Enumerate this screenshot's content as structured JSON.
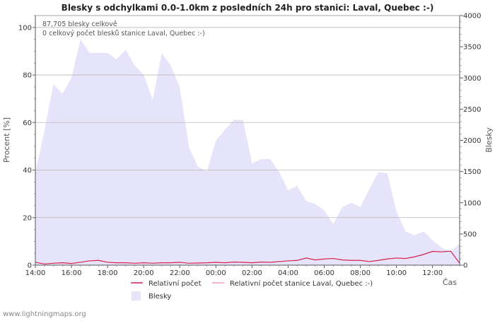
{
  "chart_data": {
    "type": "area",
    "title": "Blesky s odchylkami 0.0-1.0km z posledních 24h pro stanici: Laval, Quebec :-)",
    "ylabel_left": "Procent   [%]",
    "ylabel_right": "Blesky",
    "xlabel": "Čas",
    "ylim_left": [
      0,
      105
    ],
    "ylim_right": [
      0,
      4000
    ],
    "yticks_left": [
      "0",
      "20",
      "40",
      "60",
      "80",
      "100"
    ],
    "yticks_right": [
      "0",
      "500",
      "1000",
      "1500",
      "2000",
      "2500",
      "3000",
      "3500",
      "4000"
    ],
    "xticks": [
      "14:00",
      "16:00",
      "18:00",
      "20:00",
      "22:00",
      "00:00",
      "02:00",
      "04:00",
      "06:00",
      "08:00",
      "10:00",
      "12:00"
    ],
    "annotations": [
      "87,705 blesky celkově",
      "0 celkový počet blesků stanice Laval, Quebec :-)"
    ],
    "series": [
      {
        "name": "Blesky",
        "color": "#e6e4fa",
        "axis": "right",
        "hours": [
          0,
          0.5,
          1,
          1.5,
          2,
          2.5,
          3,
          3.5,
          4,
          4.5,
          5,
          5.5,
          6,
          6.5,
          7,
          7.5,
          8,
          8.5,
          9,
          9.5,
          10,
          10.5,
          11,
          11.5,
          12,
          12.5,
          13,
          13.5,
          14,
          14.5,
          15,
          15.5,
          16,
          16.5,
          17,
          17.5,
          18,
          18.5,
          19,
          19.5,
          20,
          20.5,
          21,
          21.5,
          22,
          22.5,
          23,
          23.5
        ],
        "values": [
          1480,
          2150,
          2900,
          2750,
          3000,
          3620,
          3400,
          3400,
          3400,
          3300,
          3450,
          3200,
          3050,
          2650,
          3400,
          3200,
          2850,
          1900,
          1580,
          1500,
          2000,
          2170,
          2330,
          2330,
          1630,
          1700,
          1700,
          1500,
          1200,
          1270,
          1030,
          980,
          880,
          660,
          930,
          1000,
          930,
          1220,
          1490,
          1470,
          860,
          540,
          480,
          540,
          400,
          280,
          210,
          350
        ]
      },
      {
        "name": "Relativní počet",
        "color": "#d6224a",
        "axis": "left",
        "hours": [
          0,
          0.5,
          1,
          1.5,
          2,
          2.5,
          3,
          3.5,
          4,
          4.5,
          5,
          5.5,
          6,
          6.5,
          7,
          7.5,
          8,
          8.5,
          9,
          9.5,
          10,
          10.5,
          11,
          11.5,
          12,
          12.5,
          13,
          13.5,
          14,
          14.5,
          15,
          15.5,
          16,
          16.5,
          17,
          17.5,
          18,
          18.5,
          19,
          19.5,
          20,
          20.5,
          21,
          21.5,
          22,
          22.5,
          23,
          23.5
        ],
        "values": [
          1.2,
          0.5,
          0.8,
          1.0,
          0.7,
          1.2,
          1.8,
          2.0,
          1.2,
          1.0,
          1.0,
          0.8,
          1.0,
          0.8,
          1.0,
          1.0,
          1.2,
          0.8,
          0.9,
          1.0,
          1.2,
          1.0,
          1.3,
          1.2,
          1.0,
          1.3,
          1.2,
          1.5,
          1.8,
          2.0,
          3.0,
          2.2,
          2.6,
          2.8,
          2.2,
          2.0,
          2.0,
          1.5,
          2.0,
          2.6,
          3.0,
          2.8,
          3.5,
          4.5,
          5.8,
          5.6,
          5.9,
          0.8
        ]
      },
      {
        "name": "Relativní počet stanice Laval, Quebec :-)",
        "color": "#f2a0b2",
        "axis": "left",
        "hours": [],
        "values": []
      }
    ],
    "legend": [
      {
        "label": "Relativní počet",
        "kind": "line",
        "color": "#d6224a"
      },
      {
        "label": "Relativní počet stanice Laval, Quebec :-)",
        "kind": "line",
        "color": "#f2a0b2"
      },
      {
        "label": "Blesky",
        "kind": "box",
        "color": "#e6e4fa"
      }
    ],
    "footer": "www.lightningmaps.org"
  }
}
